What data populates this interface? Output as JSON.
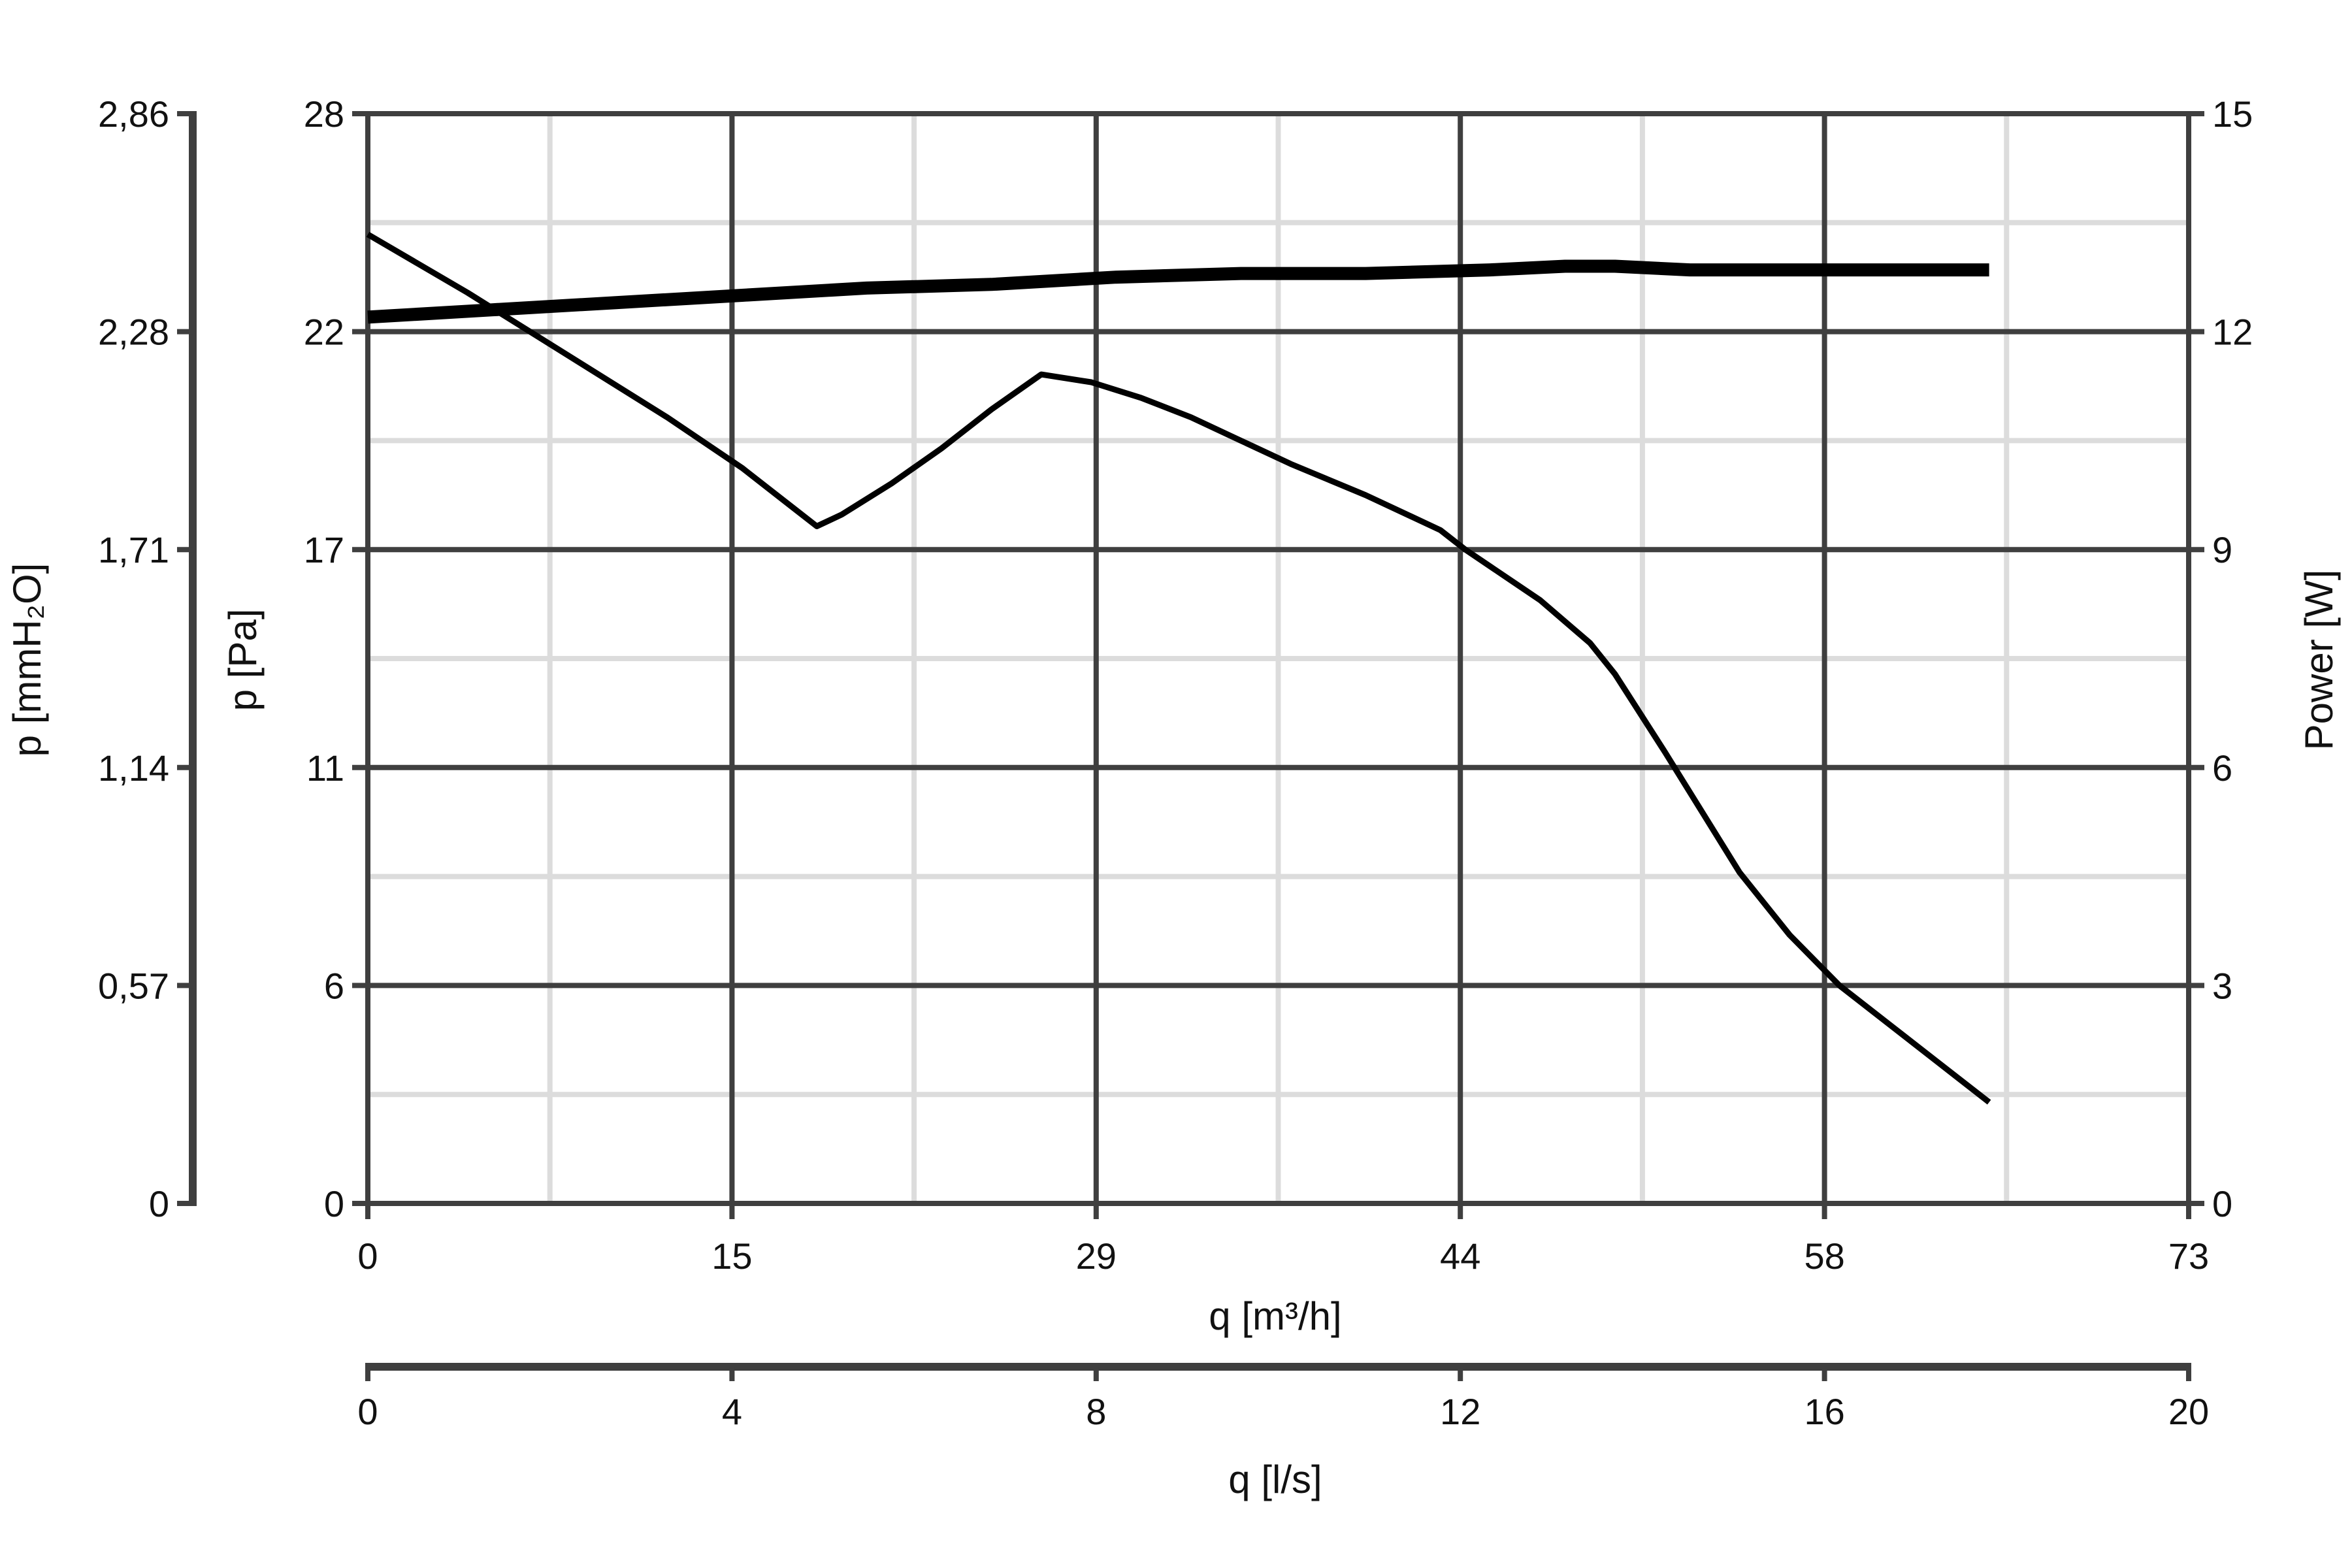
{
  "chart_data": {
    "type": "line",
    "title": "",
    "colors": {
      "grid_major": "#3f3f3f",
      "grid_minor": "#dcdcdc",
      "series": "#000000",
      "text": "#111111"
    },
    "grid": true,
    "x_axis_primary": {
      "label": "q [m³/h]",
      "range": [
        0,
        73
      ],
      "ticks": [
        "0",
        "15",
        "29",
        "44",
        "58",
        "73"
      ]
    },
    "x_axis_secondary": {
      "label": "q [l/s]",
      "range": [
        0,
        20
      ],
      "ticks": [
        "0",
        "4",
        "8",
        "12",
        "16",
        "20"
      ]
    },
    "y_axis_left_outer": {
      "label": "p [mmH₂O]",
      "range": [
        0,
        2.86
      ],
      "ticks": [
        "0",
        "0,57",
        "1,14",
        "1,71",
        "2,28",
        "2,86"
      ]
    },
    "y_axis_left": {
      "label": "p [Pa]",
      "range": [
        0,
        28
      ],
      "ticks": [
        "0",
        "6",
        "11",
        "17",
        "22",
        "28"
      ]
    },
    "y_axis_right": {
      "label": "Power [W]",
      "range": [
        0,
        15
      ],
      "ticks": [
        "0",
        "3",
        "6",
        "9",
        "12",
        "15"
      ]
    },
    "series": [
      {
        "axis": "left",
        "stroke": "thin",
        "x": [
          0,
          4,
          8,
          12,
          15,
          17,
          18,
          19,
          21,
          23,
          25,
          27,
          29,
          31,
          33,
          35,
          37,
          40,
          43,
          44,
          47,
          49,
          50,
          52,
          55,
          57,
          59,
          61,
          63,
          65
        ],
        "y": [
          24.9,
          23.4,
          21.8,
          20.2,
          18.9,
          17.9,
          17.4,
          17.7,
          18.5,
          19.4,
          20.4,
          21.3,
          21.1,
          20.7,
          20.2,
          19.6,
          19.0,
          18.2,
          17.3,
          16.8,
          15.5,
          14.4,
          13.6,
          11.6,
          8.5,
          6.9,
          5.6,
          4.6,
          3.6,
          2.6
        ]
      },
      {
        "axis": "right",
        "stroke": "thick",
        "x": [
          0,
          5,
          10,
          15,
          20,
          25,
          30,
          35,
          40,
          45,
          48,
          50,
          53,
          55,
          58,
          61,
          65
        ],
        "y": [
          12.2,
          12.3,
          12.4,
          12.5,
          12.6,
          12.65,
          12.75,
          12.8,
          12.8,
          12.85,
          12.9,
          12.9,
          12.85,
          12.85,
          12.85,
          12.85,
          12.85
        ]
      }
    ]
  }
}
